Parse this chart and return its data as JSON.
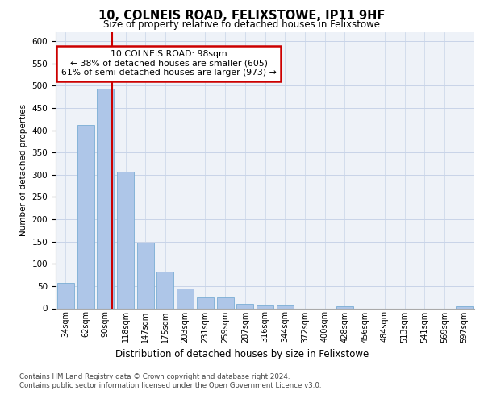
{
  "title1": "10, COLNEIS ROAD, FELIXSTOWE, IP11 9HF",
  "title2": "Size of property relative to detached houses in Felixstowe",
  "xlabel": "Distribution of detached houses by size in Felixstowe",
  "ylabel": "Number of detached properties",
  "categories": [
    "34sqm",
    "62sqm",
    "90sqm",
    "118sqm",
    "147sqm",
    "175sqm",
    "203sqm",
    "231sqm",
    "259sqm",
    "287sqm",
    "316sqm",
    "344sqm",
    "372sqm",
    "400sqm",
    "428sqm",
    "456sqm",
    "484sqm",
    "513sqm",
    "541sqm",
    "569sqm",
    "597sqm"
  ],
  "values": [
    57,
    411,
    494,
    306,
    148,
    82,
    44,
    24,
    24,
    10,
    6,
    6,
    0,
    0,
    4,
    0,
    0,
    0,
    0,
    0,
    4
  ],
  "bar_color": "#aec6e8",
  "bar_edge_color": "#7aadd4",
  "redline_x": 2.35,
  "redline_color": "#cc0000",
  "annotation_text": "10 COLNEIS ROAD: 98sqm\n← 38% of detached houses are smaller (605)\n61% of semi-detached houses are larger (973) →",
  "annotation_box_color": "#ffffff",
  "annotation_box_edge_color": "#cc0000",
  "footer1": "Contains HM Land Registry data © Crown copyright and database right 2024.",
  "footer2": "Contains public sector information licensed under the Open Government Licence v3.0.",
  "ylim": [
    0,
    620
  ],
  "yticks": [
    0,
    50,
    100,
    150,
    200,
    250,
    300,
    350,
    400,
    450,
    500,
    550,
    600
  ],
  "bg_color": "#eef2f8",
  "grid_color": "#c8d4e8"
}
